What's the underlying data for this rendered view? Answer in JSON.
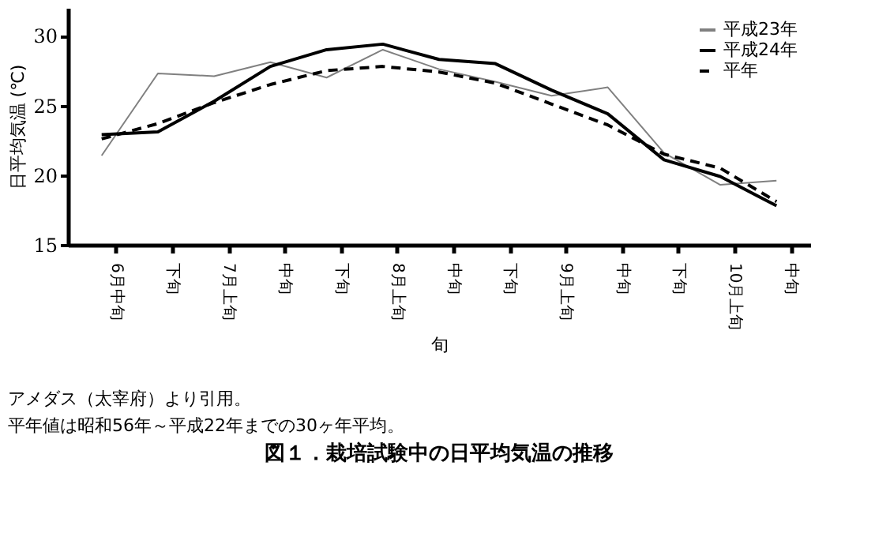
{
  "chart_data": {
    "type": "line",
    "title": "図１．栽培試験中の日平均気温の推移",
    "xlabel": "旬",
    "ylabel": "日平均気温 (℃)",
    "categories": [
      "6月中旬",
      "下旬",
      "7月上旬",
      "中旬",
      "下旬",
      "8月上旬",
      "中旬",
      "下旬",
      "9月上旬",
      "中旬",
      "下旬",
      "10月上旬",
      "中旬"
    ],
    "series": [
      {
        "name": "平成23年",
        "color": "#808080",
        "line_style": "solid",
        "values": [
          21.4,
          27.3,
          27.1,
          28.1,
          27.0,
          29.0,
          27.6,
          26.7,
          25.7,
          26.3,
          21.6,
          19.3,
          19.6
        ]
      },
      {
        "name": "平成24年",
        "color": "#000000",
        "line_style": "solid",
        "values": [
          22.9,
          23.1,
          25.3,
          27.8,
          29.0,
          29.4,
          28.3,
          28.0,
          26.1,
          24.4,
          21.1,
          19.9,
          17.8
        ]
      },
      {
        "name": "平年",
        "color": "#000000",
        "line_style": "dashed",
        "values": [
          22.6,
          23.7,
          25.2,
          26.5,
          27.5,
          27.8,
          27.4,
          26.6,
          25.1,
          23.6,
          21.5,
          20.5,
          18.1
        ]
      }
    ],
    "ylim": [
      15,
      32
    ],
    "yticks": [
      15,
      20,
      25,
      30
    ],
    "grid": false,
    "legend": "top right",
    "marker": "none",
    "annotations": [
      "アメダス（太宰府）より引用。",
      "平年値は昭和56年～平成22年までの30ヶ年平均。"
    ]
  }
}
